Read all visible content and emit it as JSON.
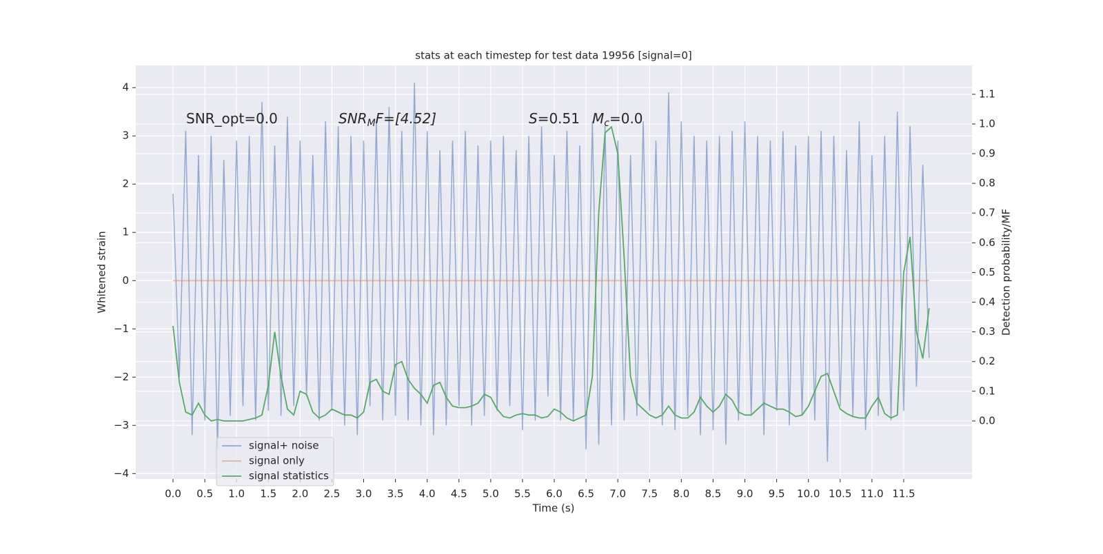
{
  "chart_data": {
    "type": "line",
    "title": "stats at each timestep for test data 19956 [signal=0]",
    "x_label": "Time (s)",
    "y_label": "Whitened strain",
    "y2_label": "Detection probability/MF",
    "annotations": [
      [
        "SNR_opt=0.0"
      ],
      [
        "SNR",
        "M",
        "F=[4.52]"
      ],
      [
        "S",
        "=0.51"
      ],
      [
        "M",
        "c",
        "=0.0"
      ]
    ],
    "x": [
      0,
      0.1,
      0.2,
      0.3,
      0.4,
      0.5,
      0.6,
      0.7,
      0.8,
      0.9,
      1,
      1.1,
      1.2,
      1.3,
      1.4,
      1.5,
      1.6,
      1.7,
      1.8,
      1.9,
      2,
      2.1,
      2.2,
      2.3,
      2.4,
      2.5,
      2.6,
      2.7,
      2.8,
      2.9,
      3,
      3.1,
      3.2,
      3.3,
      3.4,
      3.5,
      3.6,
      3.7,
      3.8,
      3.9,
      4,
      4.1,
      4.2,
      4.3,
      4.4,
      4.5,
      4.6,
      4.7,
      4.8,
      4.9,
      5,
      5.1,
      5.2,
      5.3,
      5.4,
      5.5,
      5.6,
      5.7,
      5.8,
      5.9,
      6,
      6.1,
      6.2,
      6.3,
      6.4,
      6.5,
      6.6,
      6.7,
      6.8,
      6.9,
      7,
      7.1,
      7.2,
      7.3,
      7.4,
      7.5,
      7.6,
      7.7,
      7.8,
      7.9,
      8,
      8.1,
      8.2,
      8.3,
      8.4,
      8.5,
      8.6,
      8.7,
      8.8,
      8.9,
      9,
      9.1,
      9.2,
      9.3,
      9.4,
      9.5,
      9.6,
      9.7,
      9.8,
      9.9,
      10,
      10.1,
      10.2,
      10.3,
      10.4,
      10.5,
      10.6,
      10.7,
      10.8,
      10.9,
      11,
      11.1,
      11.2,
      11.3,
      11.4,
      11.5,
      11.6,
      11.7,
      11.8,
      11.9
    ],
    "series": [
      {
        "name": "signal+ noise",
        "color": "#4c72b0",
        "axis": "y",
        "values": [
          1.8,
          -2.0,
          3.1,
          -3.2,
          2.6,
          -2.9,
          3.0,
          -3.5,
          2.5,
          -2.8,
          2.9,
          -2.6,
          3.0,
          -2.9,
          3.7,
          -2.7,
          2.8,
          -2.8,
          3.4,
          -2.6,
          2.9,
          -2.4,
          2.6,
          -2.9,
          3.3,
          -2.7,
          3.2,
          -3.0,
          3.0,
          -3.2,
          2.9,
          -2.6,
          3.3,
          -2.9,
          3.6,
          -2.8,
          3.1,
          -2.9,
          4.1,
          -3.0,
          3.1,
          -3.2,
          2.7,
          -3.0,
          2.9,
          -2.6,
          3.1,
          -3.0,
          2.8,
          -2.8,
          2.9,
          -2.7,
          3.0,
          -2.6,
          2.7,
          -3.1,
          3.0,
          -2.9,
          3.2,
          -2.4,
          2.6,
          -2.9,
          3.1,
          -2.9,
          2.8,
          -3.5,
          3.3,
          -3.4,
          3.2,
          -3.0,
          2.9,
          -2.9,
          2.6,
          -2.8,
          3.3,
          -2.7,
          2.9,
          -3.0,
          3.9,
          -3.1,
          3.3,
          -2.8,
          3.0,
          -3.2,
          2.9,
          -3.1,
          3.0,
          -3.4,
          3.1,
          -2.9,
          3.3,
          -2.8,
          3.0,
          -3.2,
          2.9,
          -2.7,
          3.1,
          -3.0,
          2.8,
          -2.8,
          3.0,
          -2.9,
          3.1,
          -3.75,
          3.0,
          -2.6,
          2.7,
          -2.8,
          3.3,
          -3.1,
          2.6,
          -2.8,
          3.0,
          -2.9,
          3.5,
          -2.7,
          3.2,
          -2.2,
          2.4,
          -1.6
        ]
      },
      {
        "name": "signal only",
        "color": "#dd8452",
        "axis": "y",
        "values": [
          0,
          0,
          0,
          0,
          0,
          0,
          0,
          0,
          0,
          0,
          0,
          0,
          0,
          0,
          0,
          0,
          0,
          0,
          0,
          0,
          0,
          0,
          0,
          0,
          0,
          0,
          0,
          0,
          0,
          0,
          0,
          0,
          0,
          0,
          0,
          0,
          0,
          0,
          0,
          0,
          0,
          0,
          0,
          0,
          0,
          0,
          0,
          0,
          0,
          0,
          0,
          0,
          0,
          0,
          0,
          0,
          0,
          0,
          0,
          0,
          0,
          0,
          0,
          0,
          0,
          0,
          0,
          0,
          0,
          0,
          0,
          0,
          0,
          0,
          0,
          0,
          0,
          0,
          0,
          0,
          0,
          0,
          0,
          0,
          0,
          0,
          0,
          0,
          0,
          0,
          0,
          0,
          0,
          0,
          0,
          0,
          0,
          0,
          0,
          0,
          0,
          0,
          0,
          0,
          0,
          0,
          0,
          0,
          0,
          0,
          0,
          0,
          0,
          0,
          0,
          0,
          0,
          0,
          0,
          0
        ]
      },
      {
        "name": "signal statistics",
        "color": "#55a868",
        "axis": "y2",
        "values": [
          0.32,
          0.13,
          0.03,
          0.02,
          0.06,
          0.02,
          0,
          0.005,
          0,
          0,
          0,
          0,
          0.005,
          0.01,
          0.02,
          0.12,
          0.3,
          0.15,
          0.04,
          0.02,
          0.1,
          0.09,
          0.03,
          0.01,
          0.02,
          0.04,
          0.03,
          0.02,
          0.02,
          0.01,
          0.03,
          0.13,
          0.14,
          0.1,
          0.09,
          0.19,
          0.2,
          0.14,
          0.11,
          0.09,
          0.06,
          0.12,
          0.13,
          0.08,
          0.05,
          0.045,
          0.045,
          0.05,
          0.06,
          0.09,
          0.08,
          0.04,
          0.015,
          0.01,
          0.02,
          0.025,
          0.02,
          0.02,
          0.01,
          0.015,
          0.04,
          0.03,
          0.01,
          0,
          0.01,
          0.02,
          0.15,
          0.7,
          0.97,
          0.99,
          0.9,
          0.55,
          0.15,
          0.06,
          0.04,
          0.02,
          0.01,
          0.02,
          0.05,
          0.02,
          0.01,
          0.01,
          0.03,
          0.08,
          0.05,
          0.03,
          0.05,
          0.09,
          0.07,
          0.03,
          0.02,
          0.02,
          0.04,
          0.06,
          0.05,
          0.04,
          0.04,
          0.03,
          0.015,
          0.02,
          0.05,
          0.1,
          0.15,
          0.16,
          0.1,
          0.04,
          0.025,
          0.015,
          0.01,
          0.01,
          0.05,
          0.08,
          0.025,
          0.01,
          0.02,
          0.5,
          0.62,
          0.3,
          0.21,
          0.38
        ]
      }
    ],
    "xlim": [
      -0.586,
      12.575
    ],
    "ylim": [
      -4.11,
      4.46
    ],
    "y2lim": [
      -0.195,
      1.197
    ],
    "xticks": [
      {
        "value": 0,
        "label": "0.0"
      },
      0.5,
      {
        "value": 1,
        "label": "1.0"
      },
      1.5,
      {
        "value": 2,
        "label": "2.0"
      },
      2.5,
      {
        "value": 3,
        "label": "3.0"
      },
      3.5,
      {
        "value": 4,
        "label": "4.0"
      },
      4.5,
      {
        "value": 5,
        "label": "5.0"
      },
      5.5,
      {
        "value": 6,
        "label": "6.0"
      },
      6.5,
      {
        "value": 7,
        "label": "7.0"
      },
      7.5,
      {
        "value": 8,
        "label": "8.0"
      },
      8.5,
      {
        "value": 9,
        "label": "9.0"
      },
      9.5,
      {
        "value": 10,
        "label": "10.0"
      },
      10.5,
      {
        "value": 11,
        "label": "11.0"
      },
      11.5
    ],
    "yticks": [
      {
        "value": -4,
        "label": "−4"
      },
      {
        "value": -3,
        "label": "−3"
      },
      {
        "value": -2,
        "label": "−2"
      },
      {
        "value": -1,
        "label": "−1"
      },
      0,
      1,
      2,
      3,
      4
    ],
    "y2ticks": [
      {
        "value": 0,
        "label": "0.0"
      },
      0.1,
      0.2,
      0.3,
      0.4,
      0.5,
      0.6,
      0.7,
      0.8,
      0.9,
      {
        "value": 1,
        "label": "1.0"
      },
      1.1
    ],
    "grid": true,
    "legend": "lower left"
  }
}
